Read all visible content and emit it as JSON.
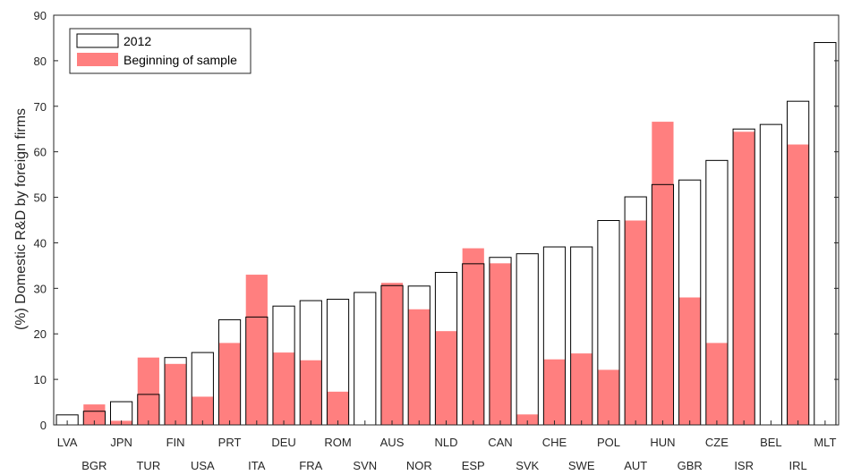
{
  "chart_data": {
    "type": "bar",
    "ylabel": "(%) Domestic R&D by foreign firms",
    "xlabel": "",
    "ylim": [
      0,
      90
    ],
    "yticks": [
      0,
      10,
      20,
      30,
      40,
      50,
      60,
      70,
      80,
      90
    ],
    "grid": false,
    "legend_placement": "top-left",
    "categories": [
      "LVA",
      "BGR",
      "JPN",
      "TUR",
      "FIN",
      "USA",
      "PRT",
      "ITA",
      "DEU",
      "FRA",
      "ROM",
      "SVN",
      "AUS",
      "NOR",
      "NLD",
      "ESP",
      "CAN",
      "SVK",
      "CHE",
      "SWE",
      "POL",
      "AUT",
      "HUN",
      "GBR",
      "CZE",
      "ISR",
      "BEL",
      "IRL",
      "MLT"
    ],
    "series": [
      {
        "name": "2012",
        "style": "outline",
        "color": "#000000",
        "values": [
          2.2,
          3.0,
          5.1,
          6.7,
          14.8,
          15.9,
          23.1,
          23.7,
          26.1,
          27.3,
          27.6,
          29.1,
          30.6,
          30.5,
          33.5,
          35.4,
          36.8,
          37.6,
          39.1,
          39.1,
          44.9,
          50.1,
          52.8,
          53.8,
          58.1,
          65.0,
          66.0,
          71.1,
          84.0
        ]
      },
      {
        "name": "Beginning of sample",
        "style": "filled",
        "color": "#ff7f7f",
        "values": [
          null,
          4.5,
          0.9,
          14.8,
          13.4,
          6.2,
          18.0,
          33.0,
          15.9,
          14.2,
          7.3,
          null,
          31.2,
          25.4,
          20.6,
          38.8,
          35.5,
          2.3,
          14.4,
          15.7,
          12.1,
          44.9,
          66.6,
          28.0,
          18.0,
          64.4,
          null,
          61.6,
          null
        ]
      }
    ]
  }
}
